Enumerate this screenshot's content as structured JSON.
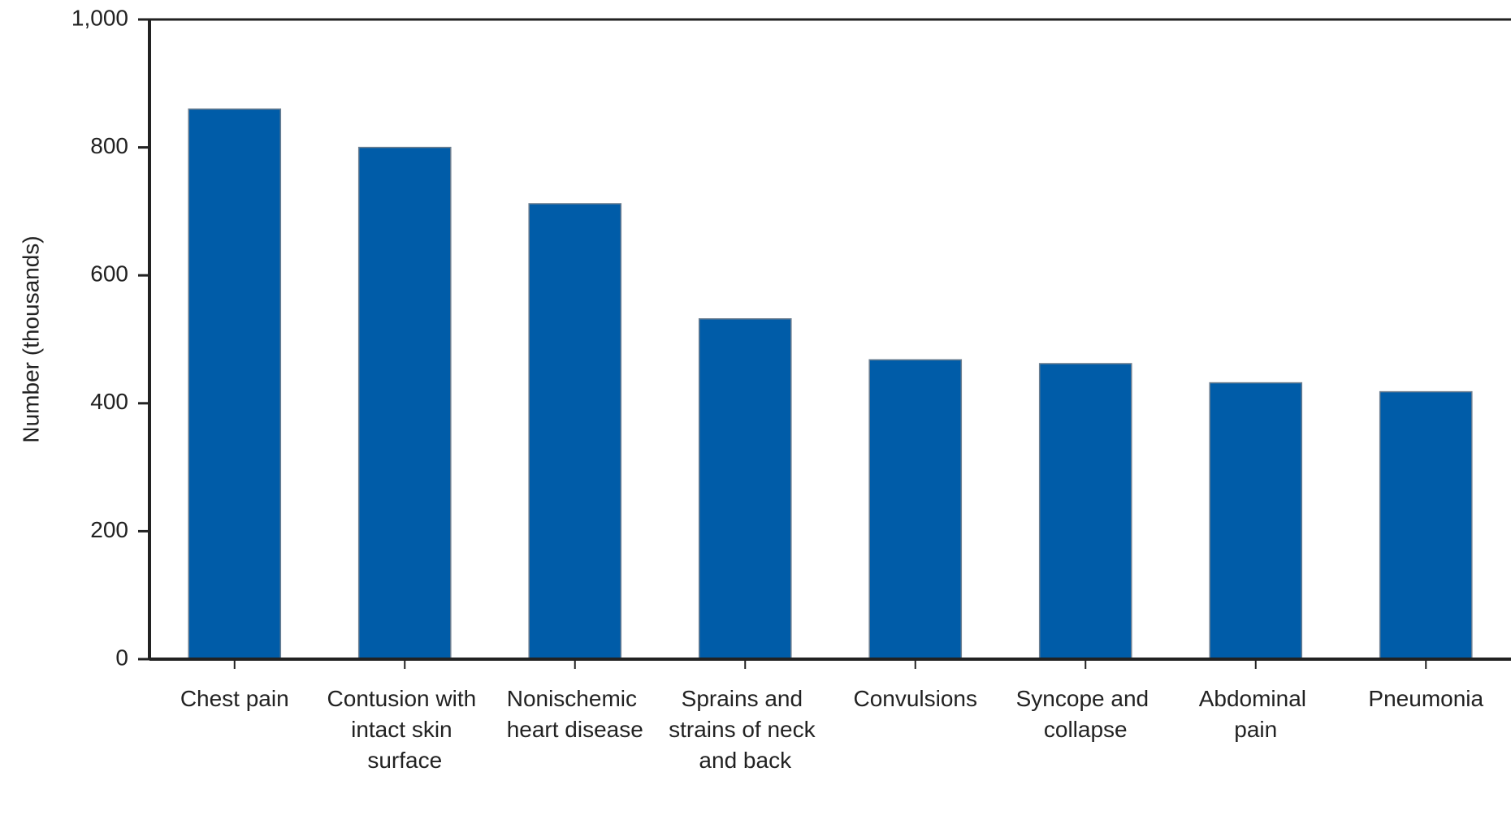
{
  "chart_data": {
    "type": "bar",
    "y_label": "Number (thousands)",
    "categories": [
      "Chest pain",
      "Contusion with intact skin surface",
      "Nonischemic heart disease",
      "Sprains and strains of neck and back",
      "Convulsions",
      "Syncope and collapse",
      "Abdominal pain",
      "Pneumonia"
    ],
    "values": [
      860,
      800,
      712,
      532,
      468,
      462,
      432,
      418
    ],
    "color": "#005ca8",
    "ylim": [
      0,
      1000
    ],
    "yticks": [
      0,
      200,
      400,
      600,
      800,
      {
        "value": 1000,
        "label": "1,000"
      }
    ],
    "grid": false
  }
}
